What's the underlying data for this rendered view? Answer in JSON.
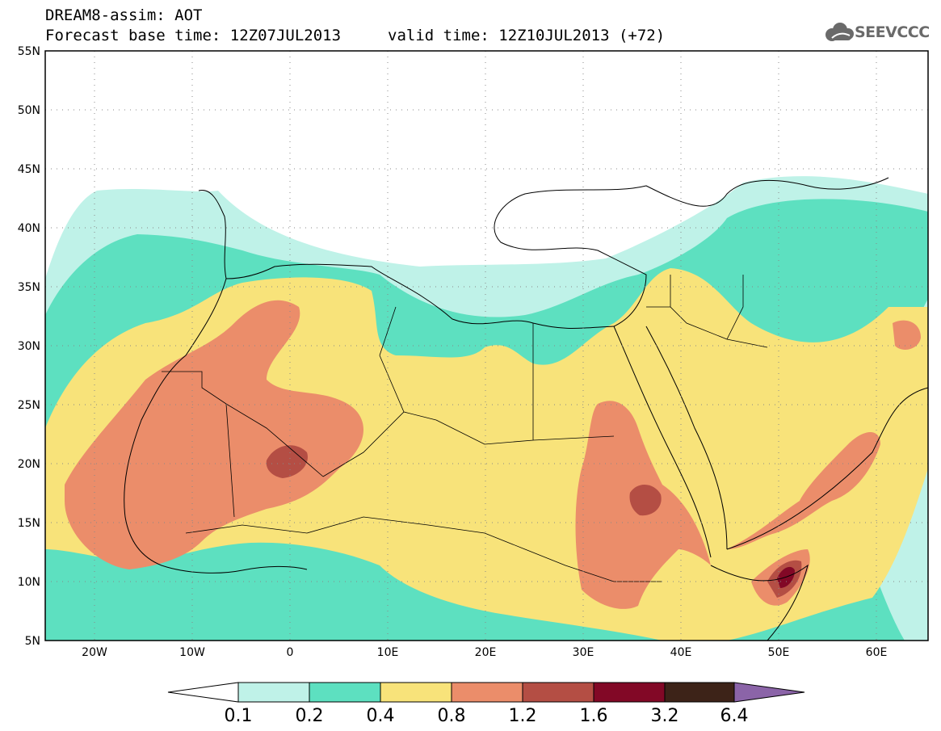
{
  "header": {
    "title": "DREAM8-assim: AOT",
    "base_time": "Forecast base time: 12Z07JUL2013",
    "valid_time": "valid time: 12Z10JUL2013 (+72)"
  },
  "logo": {
    "text": "SEEVCCC",
    "icon": "cloud-icon"
  },
  "map": {
    "lat_labels": [
      "55N",
      "50N",
      "45N",
      "40N",
      "35N",
      "30N",
      "25N",
      "20N",
      "15N",
      "10N",
      "5N"
    ],
    "lon_labels": [
      "20W",
      "10W",
      "0",
      "10E",
      "20E",
      "30E",
      "40E",
      "50E",
      "60E"
    ],
    "lon_range": [
      -25,
      65
    ],
    "lat_range": [
      5,
      55
    ]
  },
  "colorbar": {
    "labels": [
      "0.1",
      "0.2",
      "0.4",
      "0.8",
      "1.2",
      "1.6",
      "3.2",
      "6.4"
    ],
    "colors": [
      "#bff2e8",
      "#5de0c0",
      "#f8e37a",
      "#eb8d6a",
      "#b44e44",
      "#820826",
      "#3d2318",
      "#8b64a8"
    ],
    "over_color": "#8b64a8",
    "under_color": "#ffffff"
  },
  "palette": {
    "c01": "#bff2e8",
    "c02": "#5de0c0",
    "c04": "#f8e37a",
    "c08": "#eb8d6a",
    "c12": "#b44e44",
    "c16": "#820826"
  }
}
